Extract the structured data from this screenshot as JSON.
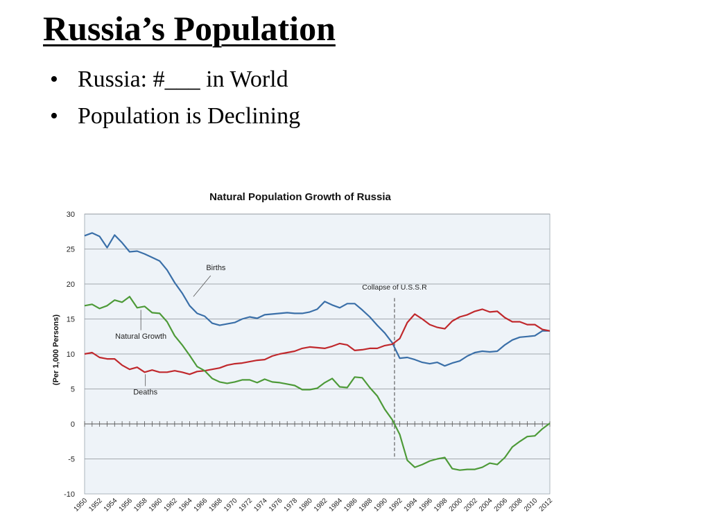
{
  "slide": {
    "title": "Russia’s Population",
    "bullets": [
      "Russia: #___ in World",
      "Population is Declining"
    ],
    "bullet_symbol": "•"
  },
  "chart_data": {
    "type": "line",
    "title": "Natural Population Growth of Russia",
    "ylabel": "(Per 1,000 Persons)",
    "xlabel": "",
    "ylim": [
      -10,
      30
    ],
    "yticks": [
      30,
      25,
      20,
      15,
      10,
      5,
      0,
      -5,
      -10
    ],
    "xlim": [
      1950,
      2012
    ],
    "xtick_labels": [
      "1950",
      "1952",
      "1954",
      "1956",
      "1958",
      "1960",
      "1962",
      "1964",
      "1966",
      "1968",
      "1970",
      "1972",
      "1974",
      "1976",
      "1978",
      "1980",
      "1982",
      "1984",
      "1986",
      "1988",
      "1990",
      "1992",
      "1994",
      "1996",
      "1998",
      "2000",
      "2002",
      "2004",
      "2006",
      "2008",
      "2010",
      "2012"
    ],
    "grid": true,
    "background": "#eef3f8",
    "series": [
      {
        "name": "Births",
        "color": "#3a6fa8",
        "x": [
          1950,
          1951,
          1952,
          1953,
          1954,
          1955,
          1956,
          1957,
          1958,
          1959,
          1960,
          1961,
          1962,
          1963,
          1964,
          1965,
          1966,
          1967,
          1968,
          1969,
          1970,
          1971,
          1972,
          1973,
          1974,
          1975,
          1976,
          1977,
          1978,
          1979,
          1980,
          1981,
          1982,
          1983,
          1984,
          1985,
          1986,
          1987,
          1988,
          1989,
          1990,
          1991,
          1992,
          1993,
          1994,
          1995,
          1996,
          1997,
          1998,
          1999,
          2000,
          2001,
          2002,
          2003,
          2004,
          2005,
          2006,
          2007,
          2008,
          2009,
          2010,
          2011,
          2012
        ],
        "values": [
          26.9,
          27.3,
          26.8,
          25.2,
          27.0,
          25.9,
          24.6,
          24.7,
          24.3,
          23.8,
          23.3,
          22.0,
          20.2,
          18.7,
          16.9,
          15.8,
          15.4,
          14.4,
          14.1,
          14.3,
          14.5,
          15.0,
          15.3,
          15.1,
          15.6,
          15.7,
          15.8,
          15.9,
          15.8,
          15.8,
          16.0,
          16.4,
          17.5,
          17.0,
          16.6,
          17.2,
          17.2,
          16.3,
          15.3,
          14.1,
          13.0,
          11.6,
          9.4,
          9.5,
          9.2,
          8.8,
          8.6,
          8.8,
          8.3,
          8.7,
          9.0,
          9.7,
          10.2,
          10.4,
          10.3,
          10.4,
          11.3,
          12.0,
          12.4,
          12.5,
          12.6,
          13.3,
          13.3
        ]
      },
      {
        "name": "Deaths",
        "color": "#c0282c",
        "x": [
          1950,
          1951,
          1952,
          1953,
          1954,
          1955,
          1956,
          1957,
          1958,
          1959,
          1960,
          1961,
          1962,
          1963,
          1964,
          1965,
          1966,
          1967,
          1968,
          1969,
          1970,
          1971,
          1972,
          1973,
          1974,
          1975,
          1976,
          1977,
          1978,
          1979,
          1980,
          1981,
          1982,
          1983,
          1984,
          1985,
          1986,
          1987,
          1988,
          1989,
          1990,
          1991,
          1992,
          1993,
          1994,
          1995,
          1996,
          1997,
          1998,
          1999,
          2000,
          2001,
          2002,
          2003,
          2004,
          2005,
          2006,
          2007,
          2008,
          2009,
          2010,
          2011,
          2012
        ],
        "values": [
          10.0,
          10.2,
          9.5,
          9.3,
          9.3,
          8.4,
          7.8,
          8.1,
          7.4,
          7.7,
          7.4,
          7.4,
          7.6,
          7.4,
          7.1,
          7.5,
          7.6,
          7.8,
          8.0,
          8.4,
          8.6,
          8.7,
          8.9,
          9.1,
          9.2,
          9.7,
          10.0,
          10.2,
          10.4,
          10.8,
          11.0,
          10.9,
          10.8,
          11.1,
          11.5,
          11.3,
          10.5,
          10.6,
          10.8,
          10.8,
          11.2,
          11.4,
          12.2,
          14.5,
          15.7,
          15.0,
          14.2,
          13.8,
          13.6,
          14.7,
          15.3,
          15.6,
          16.1,
          16.4,
          16.0,
          16.1,
          15.2,
          14.6,
          14.6,
          14.2,
          14.2,
          13.5,
          13.3
        ]
      },
      {
        "name": "Natural Growth",
        "color": "#4d9a38",
        "x": [
          1950,
          1951,
          1952,
          1953,
          1954,
          1955,
          1956,
          1957,
          1958,
          1959,
          1960,
          1961,
          1962,
          1963,
          1964,
          1965,
          1966,
          1967,
          1968,
          1969,
          1970,
          1971,
          1972,
          1973,
          1974,
          1975,
          1976,
          1977,
          1978,
          1979,
          1980,
          1981,
          1982,
          1983,
          1984,
          1985,
          1986,
          1987,
          1988,
          1989,
          1990,
          1991,
          1992,
          1993,
          1994,
          1995,
          1996,
          1997,
          1998,
          1999,
          2000,
          2001,
          2002,
          2003,
          2004,
          2005,
          2006,
          2007,
          2008,
          2009,
          2010,
          2011,
          2012
        ],
        "values": [
          16.9,
          17.1,
          16.5,
          16.9,
          17.7,
          17.4,
          18.2,
          16.6,
          16.8,
          15.9,
          15.8,
          14.6,
          12.6,
          11.3,
          9.8,
          8.2,
          7.6,
          6.5,
          6.0,
          5.8,
          6.0,
          6.3,
          6.3,
          5.9,
          6.4,
          6.0,
          5.9,
          5.7,
          5.5,
          4.9,
          4.9,
          5.1,
          5.9,
          6.5,
          5.3,
          5.2,
          6.7,
          6.6,
          5.2,
          4.0,
          2.1,
          0.6,
          -1.5,
          -5.2,
          -6.2,
          -5.8,
          -5.3,
          -5.0,
          -4.8,
          -6.4,
          -6.6,
          -6.5,
          -6.5,
          -6.2,
          -5.6,
          -5.8,
          -4.8,
          -3.3,
          -2.5,
          -1.8,
          -1.7,
          -0.7,
          0.1
        ]
      }
    ],
    "annotations": [
      {
        "text": "Births",
        "series": "Births"
      },
      {
        "text": "Natural Growth",
        "series": "Natural Growth"
      },
      {
        "text": "Deaths",
        "series": "Deaths"
      },
      {
        "text": "Collapse of U.S.S.R",
        "x": 1991
      }
    ]
  }
}
